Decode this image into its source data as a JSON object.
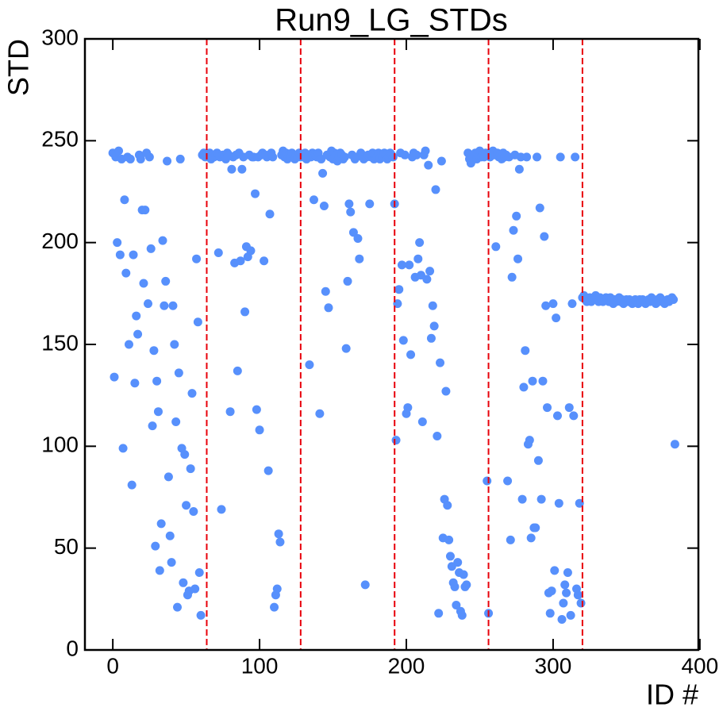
{
  "chart_data": {
    "type": "scatter",
    "title": "Run9_LG_STDs",
    "x_label": "ID #",
    "y_label": "STD",
    "xlim": [
      -19,
      399
    ],
    "ylim": [
      0,
      300
    ],
    "xticks": [
      0,
      100,
      200,
      300,
      400
    ],
    "yticks": [
      0,
      50,
      100,
      150,
      200,
      250,
      300
    ],
    "vlines": [
      64,
      128,
      192,
      256,
      320
    ],
    "vline_color": "#e8000b",
    "series": [
      {
        "color": "#5790fc",
        "x": [
          0,
          1,
          2,
          3,
          4,
          5,
          6,
          7,
          8,
          9,
          10,
          11,
          12,
          13,
          14,
          15,
          16,
          17,
          18,
          19,
          20,
          21,
          22,
          23,
          24,
          25,
          26,
          27,
          28,
          29,
          30,
          31,
          32,
          33,
          34,
          35,
          36,
          37,
          38,
          39,
          40,
          41,
          42,
          43,
          44,
          45,
          46,
          47,
          48,
          49,
          50,
          51,
          52,
          53,
          54,
          55,
          56,
          57,
          58,
          59,
          60,
          61,
          62,
          63,
          64,
          65,
          66,
          67,
          68,
          69,
          70,
          71,
          72,
          73,
          74,
          75,
          76,
          77,
          78,
          79,
          80,
          81,
          82,
          83,
          84,
          85,
          86,
          87,
          88,
          89,
          90,
          91,
          92,
          93,
          94,
          95,
          96,
          97,
          98,
          99,
          100,
          101,
          102,
          103,
          104,
          105,
          106,
          107,
          108,
          109,
          110,
          111,
          112,
          113,
          114,
          115,
          116,
          117,
          118,
          119,
          120,
          121,
          122,
          123,
          124,
          125,
          126,
          127,
          128,
          129,
          130,
          131,
          132,
          133,
          134,
          135,
          136,
          137,
          138,
          139,
          140,
          141,
          142,
          143,
          144,
          145,
          146,
          147,
          148,
          149,
          150,
          151,
          152,
          153,
          154,
          155,
          156,
          157,
          158,
          159,
          160,
          161,
          162,
          163,
          164,
          165,
          166,
          167,
          168,
          169,
          170,
          171,
          172,
          173,
          174,
          175,
          176,
          177,
          178,
          179,
          180,
          181,
          182,
          183,
          184,
          185,
          186,
          187,
          188,
          189,
          190,
          191,
          192,
          193,
          194,
          195,
          196,
          197,
          198,
          199,
          200,
          201,
          202,
          203,
          204,
          205,
          206,
          207,
          208,
          209,
          210,
          211,
          212,
          213,
          214,
          215,
          216,
          217,
          218,
          219,
          220,
          221,
          222,
          223,
          224,
          225,
          226,
          227,
          228,
          229,
          230,
          231,
          232,
          233,
          234,
          235,
          236,
          237,
          238,
          239,
          240,
          241,
          242,
          243,
          244,
          245,
          246,
          247,
          248,
          249,
          250,
          251,
          252,
          253,
          254,
          255,
          256,
          257,
          258,
          259,
          260,
          261,
          262,
          263,
          264,
          265,
          266,
          267,
          268,
          269,
          270,
          271,
          272,
          273,
          274,
          275,
          276,
          277,
          278,
          279,
          280,
          281,
          282,
          283,
          284,
          285,
          286,
          287,
          288,
          289,
          290,
          291,
          292,
          293,
          294,
          295,
          296,
          297,
          298,
          299,
          300,
          301,
          302,
          303,
          304,
          305,
          306,
          307,
          308,
          309,
          310,
          311,
          312,
          313,
          314,
          315,
          316,
          317,
          318,
          319,
          320,
          321,
          322,
          323,
          324,
          325,
          326,
          327,
          328,
          329,
          330,
          331,
          332,
          333,
          334,
          335,
          336,
          337,
          338,
          339,
          340,
          341,
          342,
          343,
          344,
          345,
          346,
          347,
          348,
          349,
          350,
          351,
          352,
          353,
          354,
          355,
          356,
          357,
          358,
          359,
          360,
          361,
          362,
          363,
          364,
          365,
          366,
          367,
          368,
          369,
          370,
          371,
          372,
          373,
          374,
          375,
          376,
          377,
          378,
          379,
          380,
          381,
          382,
          383
        ],
        "values": [
          244,
          134,
          242,
          200,
          245,
          194,
          241,
          99,
          221,
          185,
          242,
          150,
          241,
          81,
          194,
          131,
          164,
          155,
          243,
          241,
          216,
          180,
          216,
          244,
          170,
          242,
          197,
          110,
          147,
          51,
          132,
          117,
          39,
          62,
          201,
          169,
          181,
          240,
          85,
          56,
          43,
          169,
          150,
          112,
          21,
          136,
          241,
          99,
          33,
          96,
          71,
          27,
          29,
          89,
          126,
          68,
          30,
          192,
          161,
          38,
          17,
          243,
          244,
          242,
          243,
          242,
          244,
          241,
          243,
          242,
          243,
          244,
          195,
          242,
          69,
          243,
          242,
          241,
          244,
          243,
          117,
          236,
          242,
          190,
          243,
          137,
          244,
          191,
          236,
          242,
          166,
          198,
          193,
          243,
          196,
          242,
          242,
          224,
          118,
          242,
          108,
          243,
          244,
          191,
          243,
          242,
          88,
          214,
          244,
          242,
          21,
          27,
          30,
          57,
          53,
          243,
          245,
          242,
          244,
          241,
          243,
          242,
          244,
          242,
          241,
          243,
          242,
          244,
          242,
          243,
          242,
          244,
          241,
          243,
          140,
          242,
          244,
          221,
          243,
          242,
          244,
          116,
          241,
          234,
          218,
          176,
          243,
          168,
          242,
          245,
          241,
          244,
          243,
          240,
          242,
          244,
          243,
          241,
          242,
          148,
          181,
          219,
          215,
          243,
          205,
          241,
          242,
          202,
          192,
          244,
          243,
          241,
          32,
          242,
          243,
          219,
          242,
          244,
          241,
          243,
          242,
          244,
          241,
          243,
          242,
          244,
          243,
          241,
          242,
          244,
          243,
          242,
          219,
          103,
          170,
          177,
          244,
          189,
          152,
          243,
          116,
          119,
          189,
          145,
          242,
          244,
          183,
          243,
          192,
          200,
          184,
          112,
          243,
          245,
          182,
          238,
          186,
          153,
          169,
          159,
          226,
          105,
          18,
          141,
          240,
          55,
          74,
          127,
          71,
          54,
          46,
          41,
          33,
          31,
          22,
          43,
          38,
          19,
          17,
          37,
          31,
          32,
          244,
          241,
          239,
          243,
          242,
          244,
          241,
          243,
          245,
          242,
          243,
          242,
          244,
          83,
          18,
          242,
          244,
          245,
          243,
          198,
          244,
          242,
          243,
          241,
          244,
          242,
          243,
          83,
          242,
          54,
          183,
          206,
          243,
          213,
          192,
          236,
          242,
          74,
          129,
          147,
          242,
          101,
          103,
          55,
          132,
          60,
          60,
          242,
          93,
          217,
          74,
          132,
          203,
          169,
          119,
          28,
          18,
          29,
          170,
          39,
          163,
          115,
          72,
          242,
          15,
          23,
          32,
          28,
          38,
          119,
          17,
          170,
          115,
          242,
          30,
          27,
          72,
          23,
          173,
          174,
          172,
          171,
          172,
          173,
          171,
          172,
          173,
          174,
          172,
          171,
          173,
          172,
          171,
          172,
          173,
          172,
          171,
          173,
          172,
          170,
          172,
          171,
          172,
          173,
          171,
          172,
          170,
          171,
          172,
          171,
          172,
          171,
          170,
          171,
          172,
          171,
          170,
          172,
          171,
          172,
          171,
          170,
          171,
          172,
          171,
          173,
          172,
          171,
          170,
          172,
          171,
          173,
          172,
          171,
          170,
          171,
          172,
          171,
          172,
          173,
          172,
          101
        ]
      }
    ]
  }
}
